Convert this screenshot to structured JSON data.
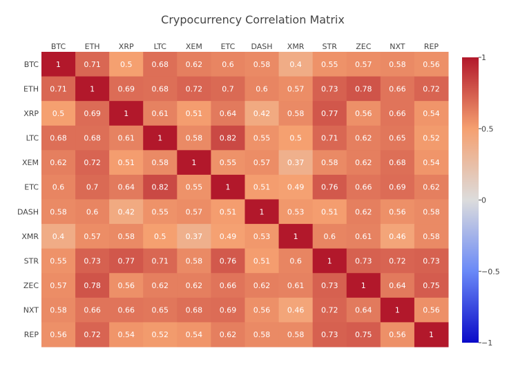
{
  "chart_data": {
    "type": "heatmap",
    "title": "Crypocurrency Correlation Matrix",
    "x_categories": [
      "BTC",
      "ETH",
      "XRP",
      "LTC",
      "XEM",
      "ETC",
      "DASH",
      "XMR",
      "STR",
      "ZEC",
      "NXT",
      "REP"
    ],
    "y_categories": [
      "BTC",
      "ETH",
      "XRP",
      "LTC",
      "XEM",
      "ETC",
      "DASH",
      "XMR",
      "STR",
      "ZEC",
      "NXT",
      "REP"
    ],
    "values": [
      [
        1,
        0.71,
        0.5,
        0.68,
        0.62,
        0.6,
        0.58,
        0.4,
        0.55,
        0.57,
        0.58,
        0.56
      ],
      [
        0.71,
        1,
        0.69,
        0.68,
        0.72,
        0.7,
        0.6,
        0.57,
        0.73,
        0.78,
        0.66,
        0.72
      ],
      [
        0.5,
        0.69,
        1,
        0.61,
        0.51,
        0.64,
        0.42,
        0.58,
        0.77,
        0.56,
        0.66,
        0.54
      ],
      [
        0.68,
        0.68,
        0.61,
        1,
        0.58,
        0.82,
        0.55,
        0.5,
        0.71,
        0.62,
        0.65,
        0.52
      ],
      [
        0.62,
        0.72,
        0.51,
        0.58,
        1,
        0.55,
        0.57,
        0.37,
        0.58,
        0.62,
        0.68,
        0.54
      ],
      [
        0.6,
        0.7,
        0.64,
        0.82,
        0.55,
        1,
        0.51,
        0.49,
        0.76,
        0.66,
        0.69,
        0.62
      ],
      [
        0.58,
        0.6,
        0.42,
        0.55,
        0.57,
        0.51,
        1,
        0.53,
        0.51,
        0.62,
        0.56,
        0.58
      ],
      [
        0.4,
        0.57,
        0.58,
        0.5,
        0.37,
        0.49,
        0.53,
        1,
        0.6,
        0.61,
        0.46,
        0.58
      ],
      [
        0.55,
        0.73,
        0.77,
        0.71,
        0.58,
        0.76,
        0.51,
        0.6,
        1,
        0.73,
        0.72,
        0.73
      ],
      [
        0.57,
        0.78,
        0.56,
        0.62,
        0.62,
        0.66,
        0.62,
        0.61,
        0.73,
        1,
        0.64,
        0.75
      ],
      [
        0.58,
        0.66,
        0.66,
        0.65,
        0.68,
        0.69,
        0.56,
        0.46,
        0.72,
        0.64,
        1,
        0.56
      ],
      [
        0.56,
        0.72,
        0.54,
        0.52,
        0.54,
        0.62,
        0.58,
        0.58,
        0.73,
        0.75,
        0.56,
        1
      ]
    ],
    "zlim": [
      -1,
      1
    ],
    "colorscale": [
      "#0a0ac8",
      "#6a89f7",
      "#dcdcdc",
      "#f5a070",
      "#b2182b"
    ],
    "colorbar_ticks": [
      {
        "value": 1,
        "label": "1"
      },
      {
        "value": 0.5,
        "label": "0.5"
      },
      {
        "value": 0,
        "label": "0"
      },
      {
        "value": -0.5,
        "label": "−0.5"
      },
      {
        "value": -1,
        "label": "−1"
      }
    ],
    "x_axis_side": "top",
    "grid": false,
    "colorbar_position": "right"
  }
}
